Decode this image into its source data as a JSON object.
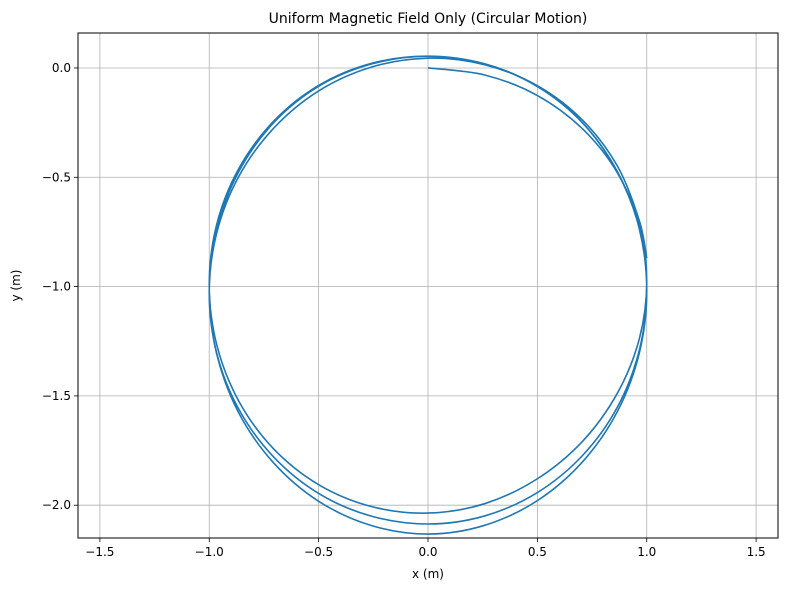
{
  "chart_data": {
    "type": "line",
    "title": "Uniform Magnetic Field Only (Circular Motion)",
    "xlabel": "x (m)",
    "ylabel": "y (m)",
    "xlim": [
      -1.6,
      1.6
    ],
    "ylim": [
      -2.15,
      0.16
    ],
    "x_ticks": [
      -1.5,
      -1.0,
      -0.5,
      0.0,
      0.5,
      1.0,
      1.5
    ],
    "x_tick_labels": [
      "−1.5",
      "−1.0",
      "−0.5",
      "0.0",
      "0.5",
      "1.0",
      "1.5"
    ],
    "y_ticks": [
      0.0,
      -0.5,
      -1.0,
      -1.5,
      -2.0
    ],
    "y_tick_labels": [
      "0.0",
      "−0.5",
      "−1.0",
      "−1.5",
      "−2.0"
    ],
    "grid": true,
    "legend": false,
    "series": [
      {
        "color": "#1f77b4",
        "points": [
          [
            0.0,
            0.0
          ],
          [
            0.259,
            -0.032
          ],
          [
            0.5,
            -0.126
          ],
          [
            0.707,
            -0.279
          ],
          [
            0.866,
            -0.48
          ],
          [
            0.966,
            -0.717
          ],
          [
            1.0,
            -0.976
          ],
          [
            0.966,
            -1.239
          ],
          [
            0.866,
            -1.487
          ],
          [
            0.707,
            -1.707
          ],
          [
            0.5,
            -1.879
          ],
          [
            0.259,
            -1.993
          ],
          [
            0.0,
            -2.036
          ],
          [
            -0.259,
            -2.006
          ],
          [
            -0.5,
            -1.906
          ],
          [
            -0.707,
            -1.741
          ],
          [
            -0.866,
            -1.522
          ],
          [
            -0.966,
            -1.265
          ],
          [
            -1.0,
            -0.991
          ],
          [
            -0.966,
            -0.716
          ],
          [
            -0.866,
            -0.462
          ],
          [
            -0.707,
            -0.245
          ],
          [
            -0.5,
            -0.08
          ],
          [
            -0.259,
            0.021
          ],
          [
            0.0,
            0.054
          ],
          [
            0.259,
            0.019
          ],
          [
            0.5,
            -0.083
          ],
          [
            0.707,
            -0.251
          ],
          [
            0.866,
            -0.474
          ],
          [
            0.966,
            -0.736
          ],
          [
            1.0,
            -1.02
          ],
          [
            0.966,
            -1.304
          ],
          [
            0.866,
            -1.571
          ],
          [
            0.707,
            -1.801
          ],
          [
            0.5,
            -1.979
          ],
          [
            0.259,
            -2.092
          ],
          [
            0.0,
            -2.132
          ],
          [
            -0.259,
            -2.093
          ],
          [
            -0.5,
            -1.982
          ],
          [
            -0.707,
            -1.805
          ],
          [
            -0.866,
            -1.576
          ],
          [
            -0.966,
            -1.308
          ],
          [
            -1.0,
            -1.024
          ],
          [
            -0.966,
            -0.739
          ],
          [
            -0.866,
            -0.476
          ],
          [
            -0.707,
            -0.252
          ],
          [
            -0.5,
            -0.084
          ],
          [
            -0.259,
            0.018
          ],
          [
            0.0,
            0.054
          ],
          [
            0.259,
            0.018
          ],
          [
            0.5,
            -0.085
          ],
          [
            0.707,
            -0.252
          ],
          [
            0.866,
            -0.477
          ],
          [
            0.966,
            -0.735
          ],
          [
            1.0,
            -1.013
          ],
          [
            0.966,
            -1.291
          ],
          [
            0.866,
            -1.551
          ],
          [
            0.707,
            -1.772
          ],
          [
            0.5,
            -1.942
          ],
          [
            0.259,
            -2.049
          ],
          [
            0.0,
            -2.086
          ],
          [
            -0.259,
            -2.05
          ],
          [
            -0.5,
            -1.946
          ],
          [
            -0.707,
            -1.778
          ],
          [
            -0.866,
            -1.559
          ],
          [
            -0.966,
            -1.304
          ],
          [
            -1.0,
            -1.03
          ],
          [
            -0.966,
            -0.755
          ],
          [
            -0.866,
            -0.498
          ],
          [
            -0.707,
            -0.277
          ],
          [
            -0.5,
            -0.105
          ],
          [
            -0.259,
            0.004
          ],
          [
            0.0,
            0.045
          ],
          [
            0.259,
            0.015
          ],
          [
            0.5,
            -0.081
          ],
          [
            0.707,
            -0.239
          ],
          [
            0.866,
            -0.449
          ],
          [
            0.966,
            -0.698
          ],
          [
            1.0,
            -0.87
          ]
        ]
      }
    ]
  }
}
